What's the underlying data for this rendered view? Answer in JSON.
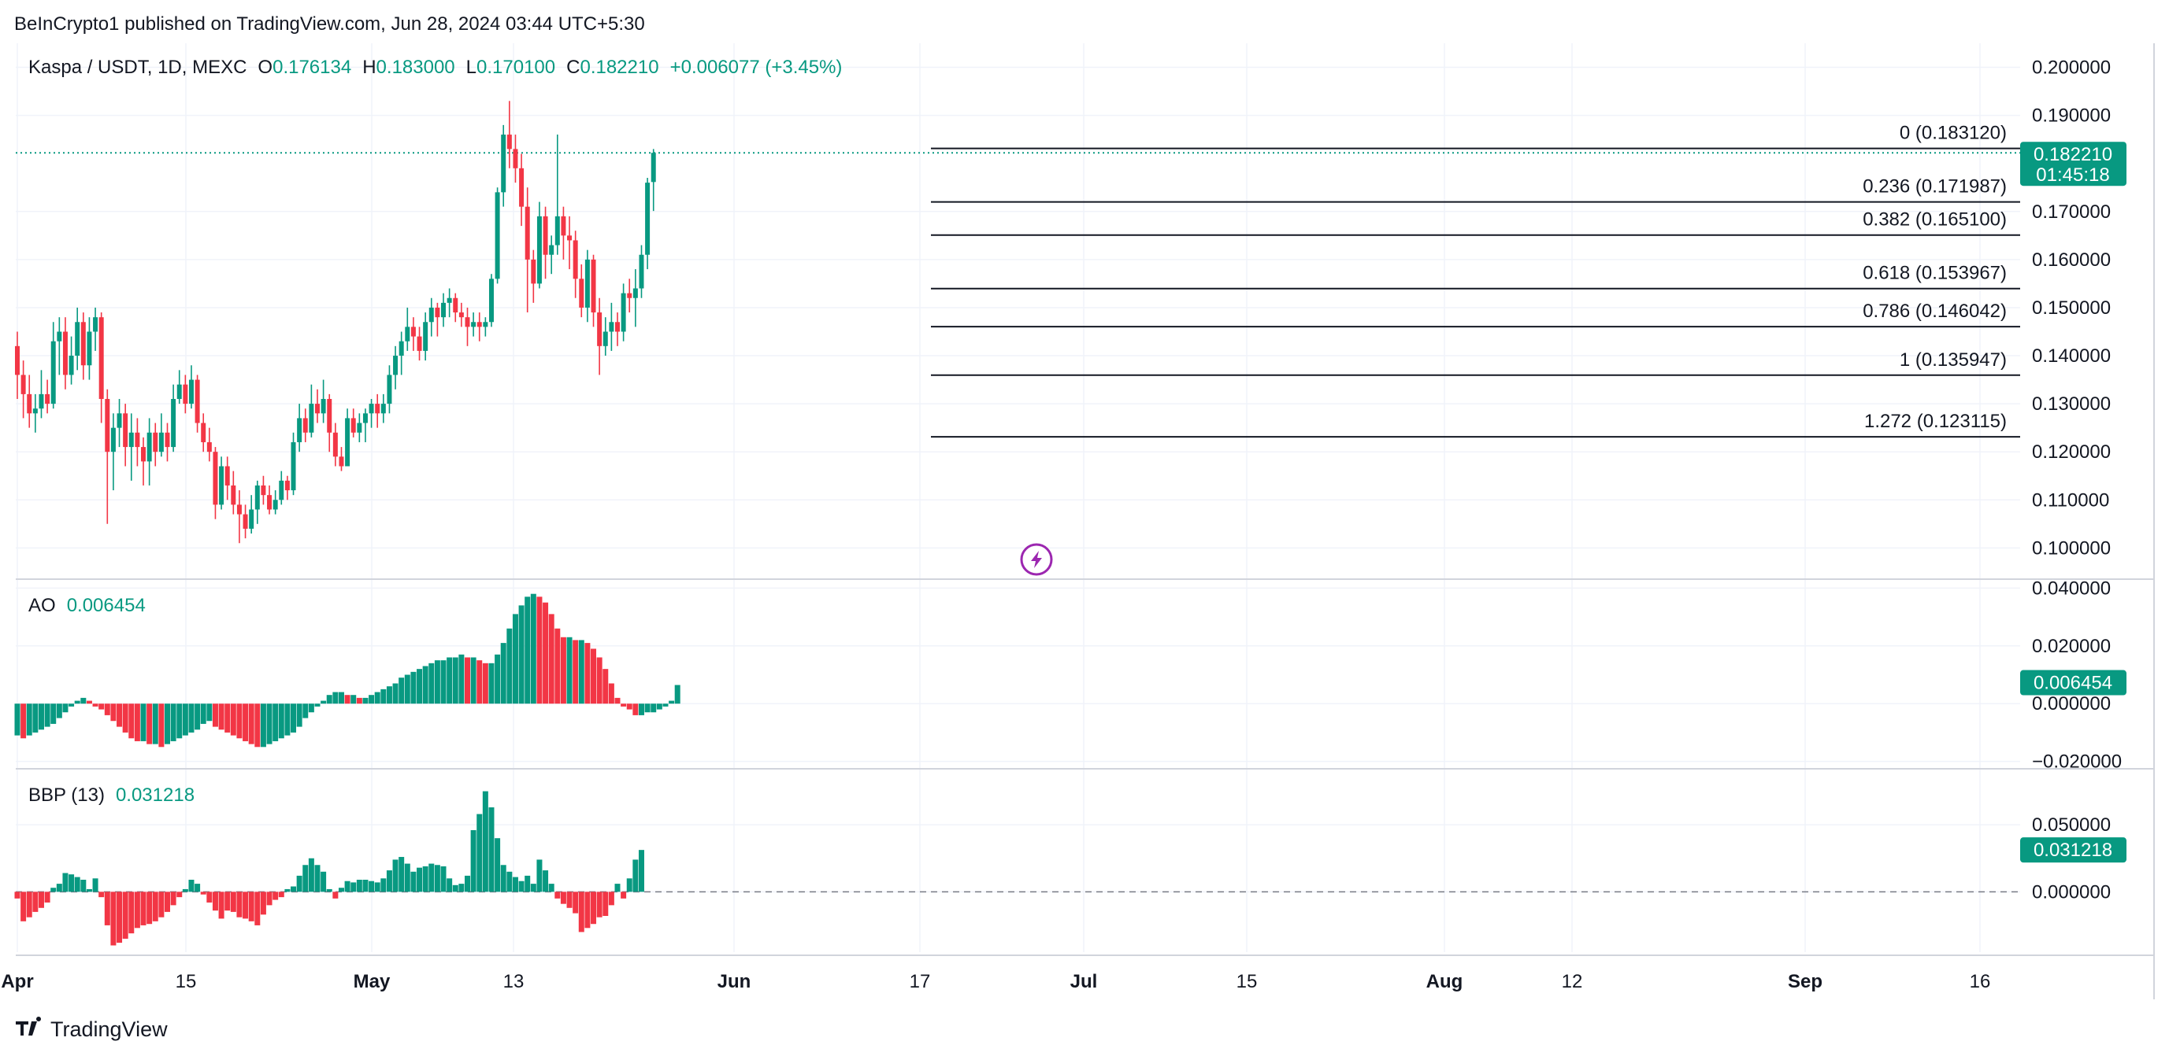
{
  "publisher": "BeInCrypto1 published on TradingView.com, Jun 28, 2024 03:44 UTC+5:30",
  "brand": "TradingView",
  "colors": {
    "up": "#089981",
    "down": "#F23645",
    "grid": "#F0F3FA",
    "fib": "#131722",
    "text": "#131722"
  },
  "chart_data": [
    {
      "type": "candlestick",
      "title": "Kaspa / USDT, 1D, MEXC",
      "ohlc": {
        "open_label": "O",
        "open": "0.176134",
        "high_label": "H",
        "high": "0.183000",
        "low_label": "L",
        "low": "0.170100",
        "close_label": "C",
        "close": "0.182210",
        "change": "+0.006077 (+3.45%)"
      },
      "price_tag": "0.182210",
      "countdown": "01:45:18",
      "y_ticks": [
        "0.200000",
        "0.190000",
        "0.170000",
        "0.160000",
        "0.150000",
        "0.140000",
        "0.130000",
        "0.120000",
        "0.110000",
        "0.100000"
      ],
      "ylim": [
        0.094,
        0.205
      ],
      "fib_levels": [
        {
          "label": "0 (0.183120)",
          "value": 0.18312
        },
        {
          "label": "0.236 (0.171987)",
          "value": 0.171987
        },
        {
          "label": "0.382 (0.165100)",
          "value": 0.1651
        },
        {
          "label": "0.618 (0.153967)",
          "value": 0.153967
        },
        {
          "label": "0.786 (0.146042)",
          "value": 0.146042
        },
        {
          "label": "1 (0.135947)",
          "value": 0.135947
        },
        {
          "label": "1.272 (0.123115)",
          "value": 0.123115
        }
      ],
      "x_ticks": [
        "Apr",
        "15",
        "May",
        "13",
        "Jun",
        "17",
        "Jul",
        "15",
        "Aug",
        "12",
        "Sep",
        "16"
      ],
      "candles": [
        [
          0.142,
          0.136,
          0.145,
          0.131
        ],
        [
          0.136,
          0.132,
          0.139,
          0.127
        ],
        [
          0.132,
          0.128,
          0.136,
          0.125
        ],
        [
          0.128,
          0.129,
          0.132,
          0.124
        ],
        [
          0.129,
          0.132,
          0.137,
          0.127
        ],
        [
          0.132,
          0.13,
          0.135,
          0.128
        ],
        [
          0.13,
          0.143,
          0.147,
          0.129
        ],
        [
          0.143,
          0.145,
          0.148,
          0.136
        ],
        [
          0.145,
          0.136,
          0.148,
          0.133
        ],
        [
          0.136,
          0.14,
          0.144,
          0.134
        ],
        [
          0.14,
          0.147,
          0.15,
          0.137
        ],
        [
          0.147,
          0.138,
          0.149,
          0.135
        ],
        [
          0.138,
          0.145,
          0.148,
          0.135
        ],
        [
          0.145,
          0.148,
          0.15,
          0.141
        ],
        [
          0.148,
          0.131,
          0.149,
          0.126
        ],
        [
          0.131,
          0.12,
          0.133,
          0.105
        ],
        [
          0.12,
          0.125,
          0.128,
          0.112
        ],
        [
          0.125,
          0.128,
          0.131,
          0.121
        ],
        [
          0.128,
          0.121,
          0.13,
          0.117
        ],
        [
          0.121,
          0.124,
          0.128,
          0.114
        ],
        [
          0.124,
          0.121,
          0.127,
          0.117
        ],
        [
          0.121,
          0.118,
          0.123,
          0.113
        ],
        [
          0.118,
          0.124,
          0.127,
          0.113
        ],
        [
          0.124,
          0.12,
          0.126,
          0.117
        ],
        [
          0.12,
          0.124,
          0.128,
          0.119
        ],
        [
          0.124,
          0.121,
          0.126,
          0.118
        ],
        [
          0.121,
          0.131,
          0.134,
          0.12
        ],
        [
          0.131,
          0.134,
          0.137,
          0.13
        ],
        [
          0.134,
          0.13,
          0.136,
          0.128
        ],
        [
          0.13,
          0.135,
          0.138,
          0.129
        ],
        [
          0.135,
          0.126,
          0.136,
          0.124
        ],
        [
          0.126,
          0.122,
          0.128,
          0.12
        ],
        [
          0.122,
          0.12,
          0.125,
          0.118
        ],
        [
          0.12,
          0.109,
          0.121,
          0.106
        ],
        [
          0.109,
          0.117,
          0.119,
          0.108
        ],
        [
          0.117,
          0.113,
          0.119,
          0.11
        ],
        [
          0.113,
          0.109,
          0.116,
          0.107
        ],
        [
          0.109,
          0.107,
          0.112,
          0.101
        ],
        [
          0.107,
          0.104,
          0.109,
          0.102
        ],
        [
          0.104,
          0.108,
          0.111,
          0.103
        ],
        [
          0.108,
          0.113,
          0.114,
          0.105
        ],
        [
          0.113,
          0.111,
          0.115,
          0.109
        ],
        [
          0.111,
          0.108,
          0.113,
          0.107
        ],
        [
          0.108,
          0.11,
          0.112,
          0.107
        ],
        [
          0.11,
          0.114,
          0.116,
          0.109
        ],
        [
          0.114,
          0.112,
          0.115,
          0.11
        ],
        [
          0.112,
          0.122,
          0.124,
          0.111
        ],
        [
          0.122,
          0.127,
          0.13,
          0.12
        ],
        [
          0.127,
          0.124,
          0.129,
          0.122
        ],
        [
          0.124,
          0.13,
          0.134,
          0.123
        ],
        [
          0.13,
          0.128,
          0.133,
          0.126
        ],
        [
          0.128,
          0.131,
          0.135,
          0.126
        ],
        [
          0.131,
          0.124,
          0.132,
          0.12
        ],
        [
          0.124,
          0.119,
          0.126,
          0.117
        ],
        [
          0.119,
          0.117,
          0.121,
          0.116
        ],
        [
          0.117,
          0.127,
          0.129,
          0.117
        ],
        [
          0.127,
          0.124,
          0.129,
          0.123
        ],
        [
          0.124,
          0.126,
          0.128,
          0.122
        ],
        [
          0.126,
          0.128,
          0.129,
          0.122
        ],
        [
          0.128,
          0.13,
          0.131,
          0.125
        ],
        [
          0.13,
          0.128,
          0.132,
          0.125
        ],
        [
          0.128,
          0.13,
          0.132,
          0.126
        ],
        [
          0.13,
          0.136,
          0.138,
          0.128
        ],
        [
          0.136,
          0.14,
          0.142,
          0.133
        ],
        [
          0.14,
          0.143,
          0.145,
          0.136
        ],
        [
          0.143,
          0.146,
          0.15,
          0.141
        ],
        [
          0.146,
          0.144,
          0.148,
          0.141
        ],
        [
          0.144,
          0.141,
          0.146,
          0.139
        ],
        [
          0.141,
          0.147,
          0.149,
          0.139
        ],
        [
          0.147,
          0.15,
          0.152,
          0.144
        ],
        [
          0.15,
          0.148,
          0.151,
          0.144
        ],
        [
          0.148,
          0.151,
          0.153,
          0.146
        ],
        [
          0.151,
          0.152,
          0.154,
          0.148
        ],
        [
          0.152,
          0.149,
          0.153,
          0.147
        ],
        [
          0.149,
          0.148,
          0.151,
          0.146
        ],
        [
          0.148,
          0.146,
          0.15,
          0.142
        ],
        [
          0.146,
          0.147,
          0.149,
          0.144
        ],
        [
          0.147,
          0.146,
          0.149,
          0.143
        ],
        [
          0.146,
          0.147,
          0.148,
          0.144
        ],
        [
          0.147,
          0.156,
          0.157,
          0.146
        ],
        [
          0.156,
          0.174,
          0.175,
          0.155
        ],
        [
          0.174,
          0.186,
          0.188,
          0.171
        ],
        [
          0.186,
          0.183,
          0.193,
          0.179
        ],
        [
          0.183,
          0.179,
          0.186,
          0.176
        ],
        [
          0.179,
          0.171,
          0.182,
          0.167
        ],
        [
          0.171,
          0.16,
          0.175,
          0.149
        ],
        [
          0.16,
          0.155,
          0.162,
          0.151
        ],
        [
          0.155,
          0.169,
          0.172,
          0.154
        ],
        [
          0.169,
          0.161,
          0.171,
          0.156
        ],
        [
          0.161,
          0.163,
          0.165,
          0.157
        ],
        [
          0.163,
          0.169,
          0.186,
          0.161
        ],
        [
          0.169,
          0.165,
          0.171,
          0.16
        ],
        [
          0.165,
          0.164,
          0.169,
          0.158
        ],
        [
          0.164,
          0.156,
          0.166,
          0.152
        ],
        [
          0.156,
          0.15,
          0.159,
          0.148
        ],
        [
          0.15,
          0.16,
          0.162,
          0.147
        ],
        [
          0.16,
          0.149,
          0.161,
          0.146
        ],
        [
          0.149,
          0.142,
          0.152,
          0.136
        ],
        [
          0.142,
          0.145,
          0.148,
          0.14
        ],
        [
          0.145,
          0.147,
          0.151,
          0.141
        ],
        [
          0.147,
          0.145,
          0.149,
          0.142
        ],
        [
          0.145,
          0.153,
          0.155,
          0.143
        ],
        [
          0.153,
          0.152,
          0.156,
          0.149
        ],
        [
          0.152,
          0.154,
          0.158,
          0.146
        ],
        [
          0.154,
          0.161,
          0.163,
          0.152
        ],
        [
          0.161,
          0.176,
          0.177,
          0.158
        ],
        [
          0.176134,
          0.18221,
          0.183,
          0.1701
        ]
      ]
    },
    {
      "type": "bar",
      "title": "AO",
      "value_label": "0.006454",
      "y_ticks": [
        "0.040000",
        "0.020000",
        "0.000000",
        "−0.020000"
      ],
      "ylim": [
        -0.022,
        0.042
      ],
      "values": [
        -0.011,
        -0.012,
        -0.011,
        -0.01,
        -0.009,
        -0.008,
        -0.007,
        -0.005,
        -0.003,
        -0.001,
        0.001,
        0.002,
        0.001,
        -0.001,
        -0.002,
        -0.004,
        -0.006,
        -0.008,
        -0.01,
        -0.012,
        -0.013,
        -0.013,
        -0.014,
        -0.014,
        -0.015,
        -0.014,
        -0.013,
        -0.012,
        -0.011,
        -0.01,
        -0.009,
        -0.007,
        -0.006,
        -0.008,
        -0.009,
        -0.01,
        -0.011,
        -0.012,
        -0.013,
        -0.014,
        -0.015,
        -0.015,
        -0.014,
        -0.013,
        -0.012,
        -0.011,
        -0.01,
        -0.008,
        -0.005,
        -0.003,
        -0.001,
        0.001,
        0.003,
        0.004,
        0.004,
        0.003,
        0.003,
        0.002,
        0.002,
        0.003,
        0.004,
        0.005,
        0.006,
        0.007,
        0.009,
        0.01,
        0.011,
        0.012,
        0.013,
        0.014,
        0.015,
        0.015,
        0.016,
        0.016,
        0.017,
        0.016,
        0.016,
        0.015,
        0.014,
        0.014,
        0.017,
        0.021,
        0.026,
        0.031,
        0.034,
        0.037,
        0.038,
        0.037,
        0.035,
        0.031,
        0.026,
        0.023,
        0.023,
        0.022,
        0.022,
        0.021,
        0.019,
        0.016,
        0.012,
        0.007,
        0.002,
        -0.001,
        -0.002,
        -0.004,
        -0.004,
        -0.003,
        -0.003,
        -0.002,
        -0.001,
        0.001,
        0.006454
      ]
    },
    {
      "type": "bar",
      "title": "BBP (13)",
      "value_label": "0.031218",
      "y_ticks": [
        "0.050000",
        "0.000000"
      ],
      "ylim": [
        -0.045,
        0.09
      ],
      "values": [
        -0.005,
        -0.022,
        -0.019,
        -0.015,
        -0.012,
        -0.008,
        0.003,
        0.006,
        0.014,
        0.013,
        0.011,
        0.009,
        0.002,
        0.01,
        -0.004,
        -0.025,
        -0.04,
        -0.038,
        -0.035,
        -0.031,
        -0.027,
        -0.025,
        -0.024,
        -0.022,
        -0.019,
        -0.015,
        -0.01,
        -0.004,
        0.002,
        0.009,
        0.006,
        -0.002,
        -0.008,
        -0.014,
        -0.02,
        -0.014,
        -0.015,
        -0.019,
        -0.02,
        -0.022,
        -0.025,
        -0.017,
        -0.01,
        -0.006,
        -0.004,
        0.002,
        0.004,
        0.012,
        0.02,
        0.025,
        0.02,
        0.015,
        0.002,
        -0.005,
        0.003,
        0.008,
        0.007,
        0.009,
        0.009,
        0.008,
        0.007,
        0.01,
        0.016,
        0.024,
        0.026,
        0.021,
        0.015,
        0.018,
        0.019,
        0.021,
        0.02,
        0.019,
        0.01,
        0.005,
        0.006,
        0.012,
        0.046,
        0.058,
        0.075,
        0.063,
        0.04,
        0.02,
        0.015,
        0.011,
        0.008,
        0.012,
        0.006,
        0.024,
        0.016,
        0.006,
        -0.005,
        -0.009,
        -0.012,
        -0.016,
        -0.03,
        -0.027,
        -0.024,
        -0.019,
        -0.018,
        -0.01,
        0.006,
        -0.005,
        0.01,
        0.024,
        0.031218
      ]
    }
  ]
}
